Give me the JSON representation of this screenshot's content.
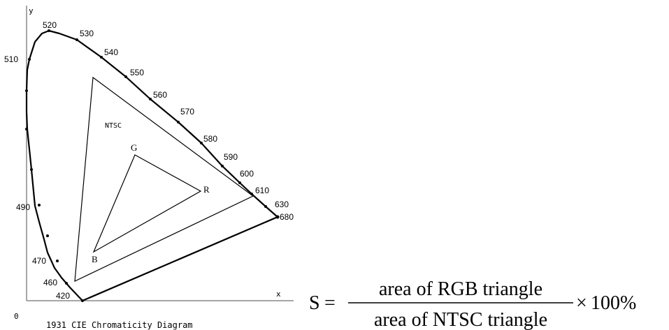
{
  "diagram": {
    "axis_x_label": "x",
    "axis_y_label": "y",
    "origin_label": "0",
    "caption": "1931 CIE Chromaticity Diagram",
    "gamut_label_ntsc": "NTSC",
    "vertex_labels": {
      "g": "G",
      "r": "R",
      "b": "B"
    },
    "wavelength_labels": [
      "520",
      "530",
      "540",
      "550",
      "560",
      "570",
      "580",
      "590",
      "600",
      "610",
      "630",
      "680",
      "510",
      "490",
      "470",
      "460",
      "420"
    ]
  },
  "formula": {
    "lhs": "S",
    "equals": "=",
    "numerator": "area of RGB triangle",
    "denominator": "area of NTSC triangle",
    "times": "×",
    "factor": "100%"
  }
}
